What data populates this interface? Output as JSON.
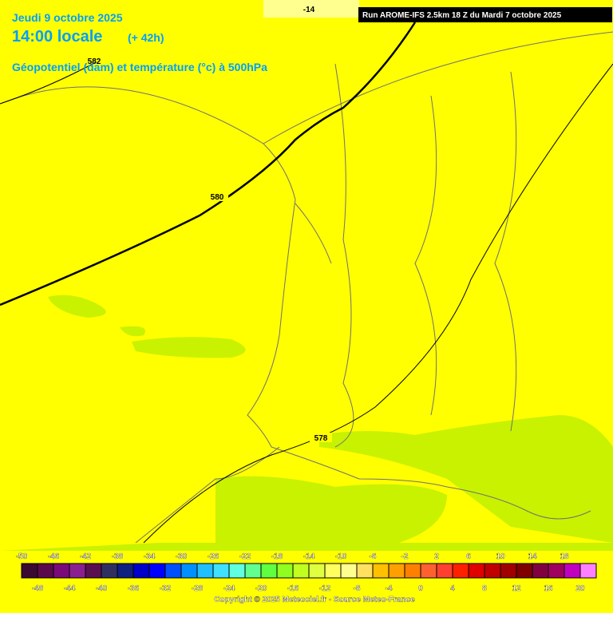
{
  "header": {
    "date": "Jeudi 9 octobre 2025",
    "time": "14:00 locale",
    "lead": "(+ 42h)",
    "field": "Géopotentiel (dam) et température (°c) à 500hPa",
    "run": "Run AROME-IFS 2.5km 18 Z du Mardi 7 octobre 2025"
  },
  "map": {
    "labels": [
      "580",
      "578",
      "582",
      "-14"
    ]
  },
  "legend": {
    "values": [
      -50,
      -48,
      -46,
      -44,
      -42,
      -40,
      -38,
      -36,
      -34,
      -32,
      -30,
      -28,
      -26,
      -24,
      -22,
      -20,
      -18,
      -16,
      -14,
      -12,
      -10,
      -8,
      -6,
      -4,
      -2,
      0,
      2,
      4,
      6,
      8,
      10,
      12,
      14,
      16,
      18,
      20
    ],
    "colors": [
      "#3b0a32",
      "#5a0a4a",
      "#7a0a7a",
      "#8a2090",
      "#5a1050",
      "#303060",
      "#102080",
      "#0000c8",
      "#0000ff",
      "#0050ff",
      "#0090ff",
      "#20c0ff",
      "#40e0ff",
      "#60ffe0",
      "#60ff90",
      "#60ff40",
      "#90ff20",
      "#c0ff20",
      "#e0ff40",
      "#ffff60",
      "#ffff90",
      "#ffe060",
      "#ffc000",
      "#ffa000",
      "#ff8000",
      "#ff6030",
      "#ff4030",
      "#ff2000",
      "#e00000",
      "#c00000",
      "#a00000",
      "#800000",
      "#800040",
      "#a00060",
      "#c000c0",
      "#ff80ff"
    ]
  },
  "footer": {
    "copyright": "Copyright © 2025 Meteociel.fr - Source Meteo-France"
  }
}
